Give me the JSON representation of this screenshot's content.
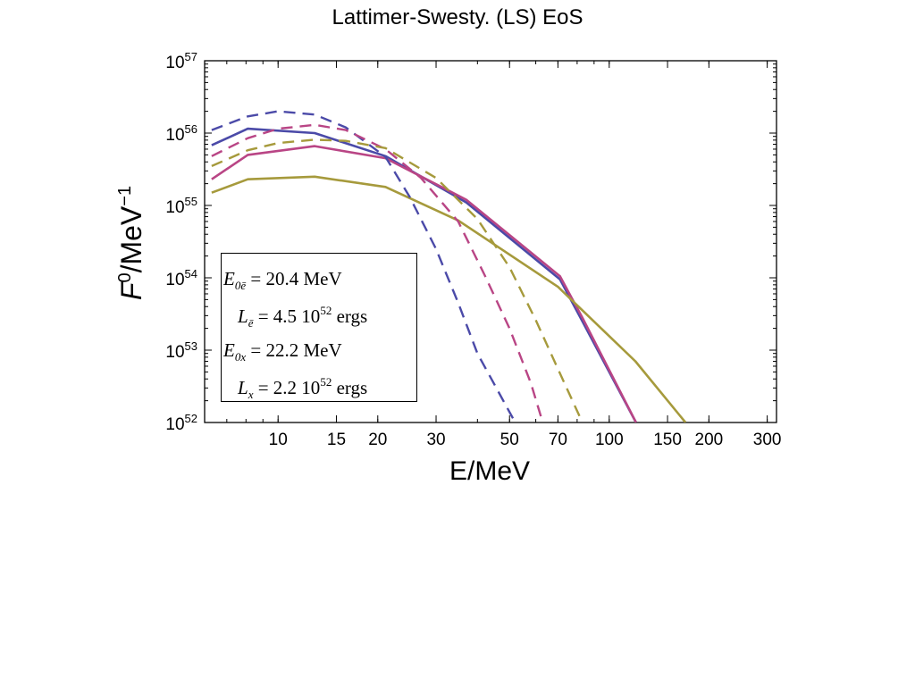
{
  "title": "Lattimer-Swesty. (LS) EoS",
  "chart_data": {
    "type": "line",
    "xlabel": "E/MeV",
    "ylabel_base": "F",
    "ylabel_base_sup": "0",
    "ylabel_unit": "/MeV",
    "ylabel_unit_sup": "−1",
    "x_scale": "log",
    "y_scale": "log",
    "xlim": [
      6,
      320
    ],
    "ylim": [
      1e+52,
      1e+57
    ],
    "x_ticks": [
      10,
      15,
      20,
      30,
      50,
      70,
      100,
      150,
      200,
      300
    ],
    "x_tick_labels": [
      "10",
      "15",
      "20",
      "30",
      "50",
      "70",
      "100",
      "150",
      "200",
      "300"
    ],
    "y_ticks": [
      1e+52,
      1e+53,
      1e+54,
      1e+55,
      1e+56,
      1e+57
    ],
    "y_tick_base": "10",
    "y_tick_exps": [
      "52",
      "53",
      "54",
      "55",
      "56",
      "57"
    ],
    "grid": false,
    "series": [
      {
        "style": "solid",
        "color": "#4b4aa8",
        "x": [
          6.3,
          8.1,
          12.9,
          21.1,
          37.0,
          71.0,
          83.0,
          120.5
        ],
        "y": [
          6.8e+55,
          1.15e+56,
          1e+56,
          4.8e+55,
          1.1e+55,
          9.5e+53,
          2.5e+53,
          1e+52
        ]
      },
      {
        "style": "solid",
        "color": "#b94585",
        "x": [
          6.3,
          8.1,
          12.9,
          21.1,
          37.0,
          71.0,
          83.0,
          120.5
        ],
        "y": [
          2.3e+55,
          5e+55,
          6.6e+55,
          4.5e+55,
          1.2e+55,
          1.05e+54,
          2.8e+53,
          1e+52
        ]
      },
      {
        "style": "solid",
        "color": "#a69a3c",
        "x": [
          6.3,
          8.1,
          12.9,
          21.1,
          35.0,
          70.0,
          120.0,
          170.0
        ],
        "y": [
          1.5e+55,
          2.3e+55,
          2.5e+55,
          1.8e+55,
          6.2e+54,
          7.5e+53,
          7e+52,
          1e+52
        ]
      },
      {
        "style": "dashed",
        "color": "#4b4aa8",
        "x": [
          6.3,
          8.1,
          10.0,
          12.9,
          16.0,
          21.1,
          25.0,
          30.0,
          35.0,
          40.0,
          46.0,
          52.0
        ],
        "y": [
          1.1e+56,
          1.7e+56,
          2e+56,
          1.8e+56,
          1.2e+56,
          4.7e+55,
          1.3e+55,
          2.5e+54,
          4.5e+53,
          9e+52,
          2.8e+52,
          1e+52
        ]
      },
      {
        "style": "dashed",
        "color": "#b94585",
        "x": [
          6.3,
          8.1,
          10.0,
          12.9,
          16.0,
          21.1,
          27.0,
          35.0,
          42.0,
          50.0,
          58.0,
          63.0
        ],
        "y": [
          4.8e+55,
          8.5e+55,
          1.15e+56,
          1.3e+56,
          1.1e+56,
          6e+55,
          2.4e+55,
          6e+54,
          1.1e+54,
          2e+53,
          3.5e+52,
          1e+52
        ]
      },
      {
        "style": "dashed",
        "color": "#a69a3c",
        "x": [
          6.3,
          8.1,
          10.0,
          12.9,
          16.0,
          21.1,
          30.0,
          40.0,
          50.0,
          60.0,
          70.0,
          83.0
        ],
        "y": [
          3.5e+55,
          5.8e+55,
          7.3e+55,
          8.1e+55,
          7.8e+55,
          6.2e+55,
          2.4e+55,
          6.5e+54,
          1.4e+54,
          2.6e+53,
          5.5e+52,
          1e+52
        ]
      }
    ],
    "legend_box": {
      "lines": [
        {
          "sym": "E",
          "sub": "0ē",
          "rest": "= 20.4 MeV"
        },
        {
          "sym": "L",
          "sub": "ē",
          "rest_pre": "= 4.5 10",
          "rest_sup": "52",
          "rest_post": " ergs"
        },
        {
          "sym": "E",
          "sub": "0x",
          "rest": "= 22.2 MeV"
        },
        {
          "sym": "L",
          "sub": "x",
          "rest_pre": "= 2.2 10",
          "rest_sup": "52",
          "rest_post": " ergs"
        }
      ]
    }
  }
}
